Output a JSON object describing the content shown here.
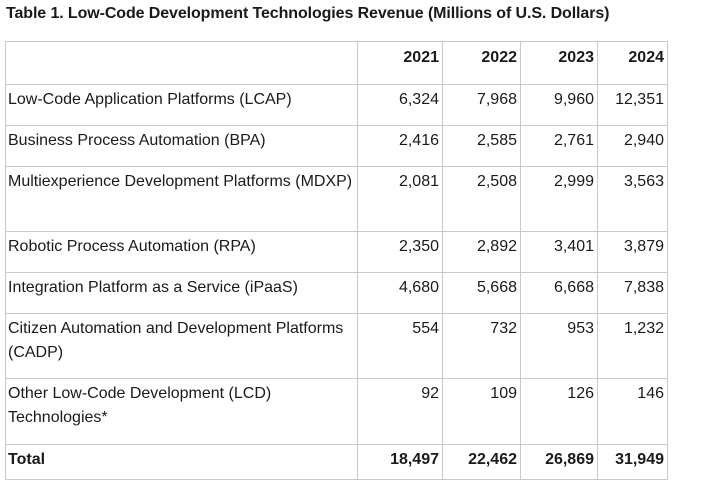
{
  "title": "Table 1. Low-Code Development Technologies Revenue (Millions of U.S. Dollars)",
  "columns": [
    "",
    "2021",
    "2022",
    "2023",
    "2024"
  ],
  "rows": [
    {
      "label": "Low-Code Application Platforms (LCAP)",
      "values": [
        "6,324",
        "7,968",
        "9,960",
        "12,351"
      ]
    },
    {
      "label": "Business Process Automation (BPA)",
      "values": [
        "2,416",
        "2,585",
        "2,761",
        "2,940"
      ]
    },
    {
      "label": "Multiexperience Development Platforms (MDXP)",
      "values": [
        "2,081",
        "2,508",
        "2,999",
        "3,563"
      ]
    },
    {
      "label": "Robotic Process Automation (RPA)",
      "values": [
        "2,350",
        "2,892",
        "3,401",
        "3,879"
      ]
    },
    {
      "label": "Integration Platform as a Service (iPaaS)",
      "values": [
        "4,680",
        "5,668",
        "6,668",
        "7,838"
      ]
    },
    {
      "label": "Citizen Automation and Development Platforms (CADP)",
      "values": [
        "554",
        "732",
        "953",
        "1,232"
      ]
    },
    {
      "label": "Other Low-Code Development (LCD) Technologies*",
      "values": [
        "92",
        "109",
        "126",
        "146"
      ]
    }
  ],
  "total": {
    "label": "Total",
    "values": [
      "18,497",
      "22,462",
      "26,869",
      "31,949"
    ]
  }
}
